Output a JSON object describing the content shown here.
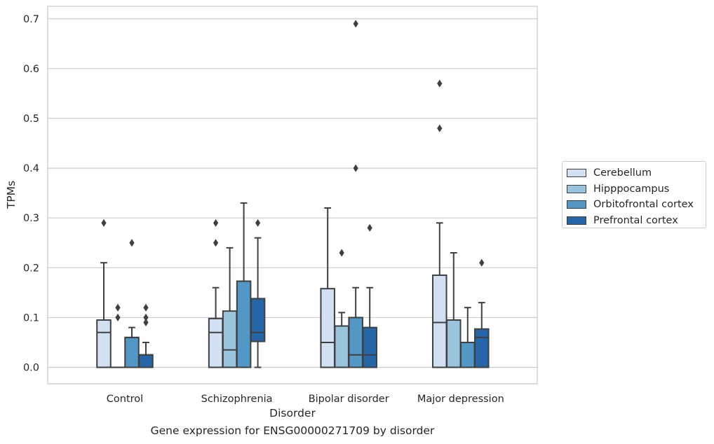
{
  "chart_data": {
    "type": "box",
    "title": "",
    "caption": "Gene expression for ENSG00000271709 by disorder",
    "xlabel": "Disorder",
    "ylabel": "TPMs",
    "ylim": [
      -0.033,
      0.725
    ],
    "yticks": [
      "0.0",
      "0.1",
      "0.2",
      "0.3",
      "0.4",
      "0.5",
      "0.6",
      "0.7"
    ],
    "grid": true,
    "legend_position": "right",
    "categories": [
      "Control",
      "Schizophrenia",
      "Bipolar disorder",
      "Major depression"
    ],
    "series": [
      {
        "name": "Cerebellum",
        "color": "#d1e1f1",
        "boxes": [
          {
            "whislo": 0.0,
            "q1": 0.0,
            "med": 0.07,
            "q3": 0.095,
            "whishi": 0.21,
            "fliers": [
              0.29
            ]
          },
          {
            "whislo": 0.0,
            "q1": 0.0,
            "med": 0.07,
            "q3": 0.098,
            "whishi": 0.16,
            "fliers": [
              0.25,
              0.29
            ]
          },
          {
            "whislo": 0.0,
            "q1": 0.0,
            "med": 0.05,
            "q3": 0.158,
            "whishi": 0.32,
            "fliers": []
          },
          {
            "whislo": 0.0,
            "q1": 0.0,
            "med": 0.09,
            "q3": 0.185,
            "whishi": 0.29,
            "fliers": [
              0.48,
              0.57
            ]
          }
        ]
      },
      {
        "name": "Hipppocampus",
        "color": "#99c4dd",
        "boxes": [
          {
            "whislo": 0.0,
            "q1": 0.0,
            "med": 0.0,
            "q3": 0.0,
            "whishi": 0.0,
            "fliers": [
              0.1,
              0.12
            ]
          },
          {
            "whislo": 0.0,
            "q1": 0.0,
            "med": 0.035,
            "q3": 0.113,
            "whishi": 0.24,
            "fliers": []
          },
          {
            "whislo": 0.0,
            "q1": 0.0,
            "med": 0.083,
            "q3": 0.083,
            "whishi": 0.11,
            "fliers": [
              0.23
            ]
          },
          {
            "whislo": 0.0,
            "q1": 0.0,
            "med": 0.095,
            "q3": 0.095,
            "whishi": 0.23,
            "fliers": []
          }
        ]
      },
      {
        "name": "Orbitofrontal cortex",
        "color": "#5397c6",
        "boxes": [
          {
            "whislo": 0.0,
            "q1": 0.0,
            "med": 0.06,
            "q3": 0.06,
            "whishi": 0.08,
            "fliers": [
              0.25
            ]
          },
          {
            "whislo": 0.0,
            "q1": 0.0,
            "med": 0.173,
            "q3": 0.173,
            "whishi": 0.33,
            "fliers": []
          },
          {
            "whislo": 0.0,
            "q1": 0.0,
            "med": 0.025,
            "q3": 0.1,
            "whishi": 0.16,
            "fliers": [
              0.4,
              0.69
            ]
          },
          {
            "whislo": 0.0,
            "q1": 0.0,
            "med": 0.05,
            "q3": 0.05,
            "whishi": 0.12,
            "fliers": []
          }
        ]
      },
      {
        "name": "Prefrontal cortex",
        "color": "#2466a8",
        "boxes": [
          {
            "whislo": 0.0,
            "q1": 0.0,
            "med": 0.025,
            "q3": 0.025,
            "whishi": 0.05,
            "fliers": [
              0.09,
              0.1,
              0.12
            ]
          },
          {
            "whislo": 0.0,
            "q1": 0.052,
            "med": 0.07,
            "q3": 0.138,
            "whishi": 0.26,
            "fliers": [
              0.29
            ]
          },
          {
            "whislo": 0.0,
            "q1": 0.0,
            "med": 0.025,
            "q3": 0.08,
            "whishi": 0.16,
            "fliers": [
              0.28
            ]
          },
          {
            "whislo": 0.0,
            "q1": 0.0,
            "med": 0.06,
            "q3": 0.077,
            "whishi": 0.13,
            "fliers": [
              0.21
            ]
          }
        ]
      }
    ]
  }
}
